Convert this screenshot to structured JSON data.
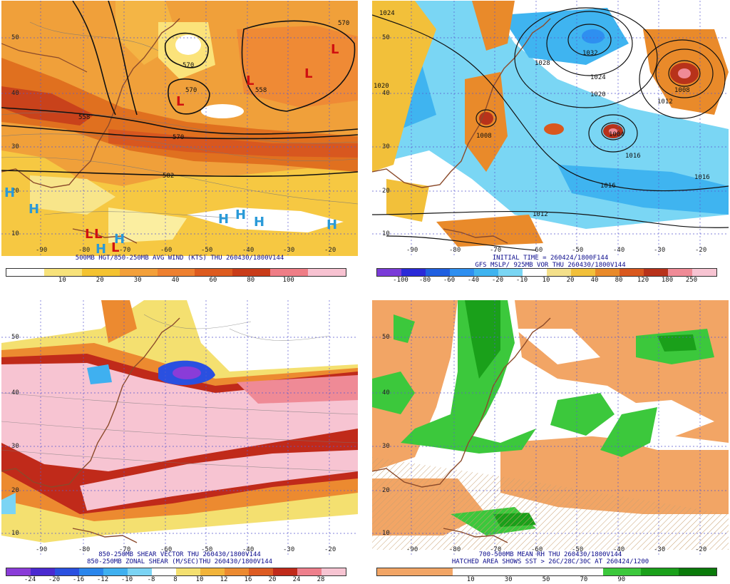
{
  "panels": {
    "tl": {
      "caption_lines": [
        "500MB HGT/850-250MB AVG WIND (KTS) THU 260430/1800V144"
      ],
      "lat_labels": [
        "50",
        "40",
        "30",
        "20",
        "10"
      ],
      "lon_labels": [
        "-90",
        "-80",
        "-70",
        "-60",
        "-50",
        "-40",
        "-30",
        "-20"
      ],
      "contour_labels": [
        "570",
        "570",
        "558",
        "558",
        "570",
        "582",
        "570"
      ],
      "L_marks": [
        "L",
        "L",
        "L",
        "L",
        "L",
        "L",
        "L"
      ],
      "H_marks": [
        "H",
        "H",
        "H",
        "H",
        "H",
        "H",
        "H",
        "H"
      ],
      "colorbar": {
        "ticks": [
          "10",
          "20",
          "30",
          "40",
          "60",
          "80",
          "100"
        ],
        "colors": [
          "#ffffff",
          "#f7e27a",
          "#f4c330",
          "#f3a03a",
          "#ee8030",
          "#dd5b1f",
          "#c93c19",
          "#ef7d86",
          "#f7c2d1"
        ]
      }
    },
    "tr": {
      "caption_lines": [
        "INITIAL TIME = 260424/1800F144",
        "GFS MSLP/ 925MB VOR THU 260430/1800V144"
      ],
      "lat_labels": [
        "50",
        "40",
        "30",
        "20",
        "10"
      ],
      "lon_labels": [
        "-90",
        "-80",
        "-70",
        "-60",
        "-50",
        "-40",
        "-30",
        "-20"
      ],
      "isobar_labels": [
        "1024",
        "1032",
        "1028",
        "1024",
        "1020",
        "1008",
        "1012",
        "1016",
        "1016",
        "1012",
        "1008",
        "1004",
        "1020",
        "1016"
      ],
      "colorbar": {
        "ticks": [
          "-100",
          "-80",
          "-60",
          "-40",
          "-20",
          "-10",
          "10",
          "20",
          "40",
          "80",
          "120",
          "180",
          "250"
        ],
        "colors": [
          "#7a3bd8",
          "#2a2ad8",
          "#1f5fe0",
          "#2e8ff0",
          "#3fb4f0",
          "#7ad6f4",
          "#ffffff",
          "#f4e08a",
          "#f2c03a",
          "#e98a2a",
          "#d9581e",
          "#b8321a",
          "#ef8a96",
          "#f7c4d2"
        ]
      }
    },
    "bl": {
      "caption_lines": [
        "850-250MB SHEAR VECTOR THU 260430/1800V144",
        "850-250MB ZONAL SHEAR (M/SEC)THU 260430/1800V144"
      ],
      "lat_labels": [
        "50",
        "40",
        "30",
        "20",
        "10"
      ],
      "lon_labels": [
        "-90",
        "-80",
        "-70",
        "-60",
        "-50",
        "-40",
        "-30",
        "-20"
      ],
      "colorbar": {
        "ticks": [
          "-24",
          "-20",
          "-16",
          "-12",
          "-10",
          "-8",
          "8",
          "10",
          "12",
          "16",
          "20",
          "24",
          "28"
        ],
        "colors": [
          "#8a3cd8",
          "#4a2ad0",
          "#2a50e0",
          "#2a86ec",
          "#3fb0f0",
          "#7bd4f4",
          "#ffffff",
          "#f4e070",
          "#f2b43a",
          "#ec8a30",
          "#dd5b22",
          "#c02a1a",
          "#ee7f8c",
          "#f7c4d2"
        ]
      }
    },
    "br": {
      "caption_lines": [
        "700-500MB MEAN RH THU 260430/1800V144",
        "HATCHED AREA SHOWS SST > 26C/28C/30C AT 260424/1200"
      ],
      "lat_labels": [
        "50",
        "40",
        "30",
        "20",
        "10"
      ],
      "lon_labels": [
        "-90",
        "-80",
        "-70",
        "-60",
        "-50",
        "-40",
        "-30",
        "-20"
      ],
      "colorbar": {
        "ticks": [
          "10",
          "30",
          "50",
          "70",
          "90"
        ],
        "colors": [
          "#f2a565",
          "#f2a565",
          "#ffffff",
          "#ffffff",
          "#ffffff",
          "#ffffff",
          "#3cc83c",
          "#1aa01a",
          "#0a7a0a"
        ]
      }
    }
  }
}
